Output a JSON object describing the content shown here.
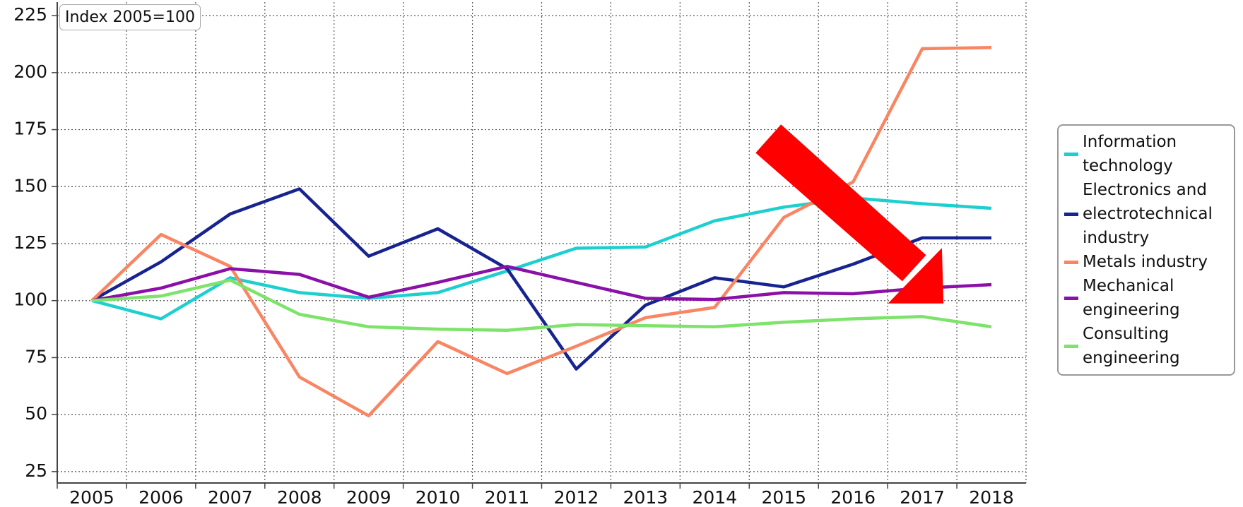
{
  "chart_data": {
    "type": "line",
    "annotation": "Index 2005=100",
    "categories": [
      "2005",
      "2006",
      "2007",
      "2008",
      "2009",
      "2010",
      "2011",
      "2012",
      "2013",
      "2014",
      "2015",
      "2016",
      "2017",
      "2018"
    ],
    "series": [
      {
        "name": "Information technology",
        "color": "#1ecfd0",
        "values": [
          100,
          92,
          110,
          103.5,
          101,
          103.5,
          113,
          123,
          123.5,
          135,
          141,
          145,
          142.5,
          140.5
        ]
      },
      {
        "name": "Electronics and electrotechnical industry",
        "color": "#172490",
        "values": [
          100,
          117,
          138,
          149,
          119.5,
          131.5,
          114,
          70,
          98,
          110,
          106,
          116,
          127.5,
          127.5
        ]
      },
      {
        "name": "Metals industry",
        "color": "#f98563",
        "values": [
          100,
          129,
          115,
          66.5,
          49.5,
          82,
          68,
          80,
          92.5,
          97,
          136.5,
          152,
          210.5,
          211
        ]
      },
      {
        "name": "Mechanical engineering",
        "color": "#8a10a8",
        "values": [
          100,
          105.5,
          114,
          111.5,
          101.5,
          108,
          115,
          108,
          101,
          100.5,
          103.5,
          103,
          105.5,
          107
        ]
      },
      {
        "name": "Consulting engineering",
        "color": "#7de36a",
        "values": [
          100,
          102,
          109,
          94,
          88.5,
          87.5,
          87,
          89.5,
          89,
          88.5,
          90.5,
          92,
          93,
          88.5
        ]
      }
    ],
    "ylim": [
      20,
      230
    ],
    "yticks": [
      25,
      50,
      75,
      100,
      125,
      150,
      175,
      200,
      225
    ],
    "grid": true,
    "legend": "right"
  }
}
